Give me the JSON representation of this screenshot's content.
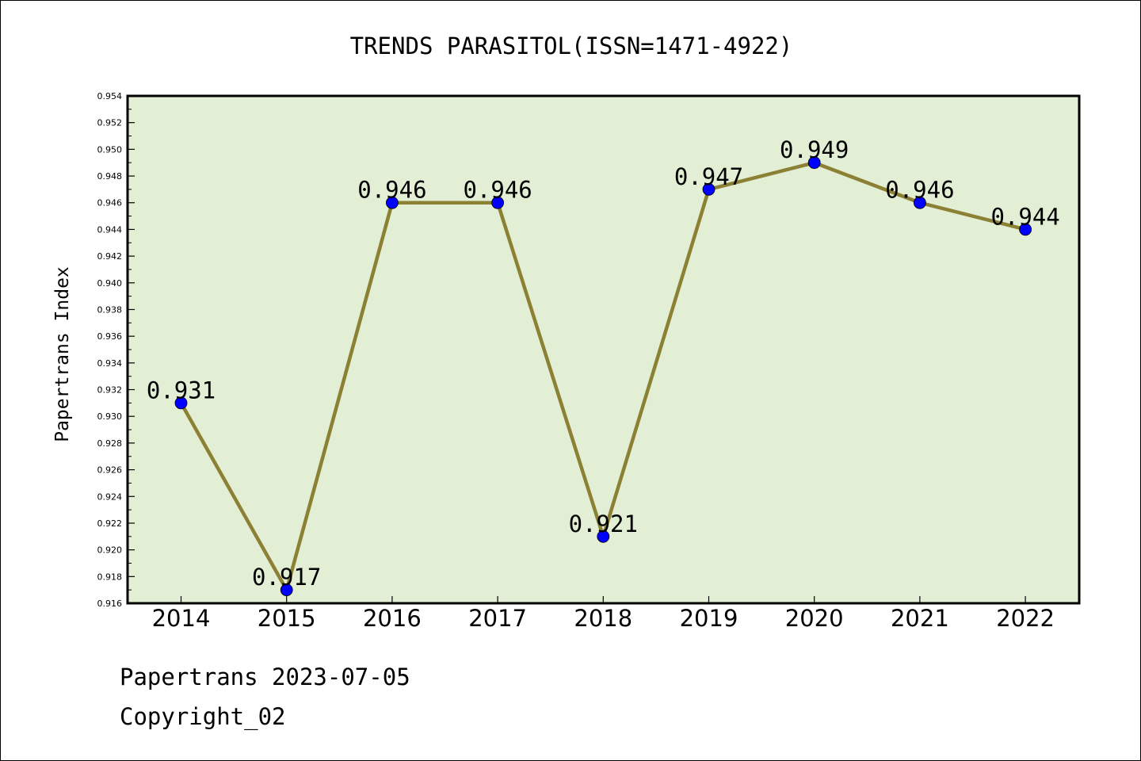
{
  "chart_data": {
    "type": "line",
    "title": "TRENDS PARASITOL(ISSN=1471-4922)",
    "xlabel": "",
    "ylabel": "Papertrans Index",
    "categories": [
      "2014",
      "2015",
      "2016",
      "2017",
      "2018",
      "2019",
      "2020",
      "2021",
      "2022"
    ],
    "series": [
      {
        "values": [
          0.931,
          0.917,
          0.946,
          0.946,
          0.921,
          0.947,
          0.949,
          0.946,
          0.944
        ],
        "data_labels": [
          "0.931",
          "0.917",
          "0.946",
          "0.946",
          "0.921",
          "0.947",
          "0.949",
          "0.946",
          "0.944"
        ]
      }
    ],
    "ylim": [
      0.916,
      0.954
    ],
    "yticks": [
      "0.916",
      "0.918",
      "0.920",
      "0.922",
      "0.924",
      "0.926",
      "0.928",
      "0.930",
      "0.932",
      "0.934",
      "0.936",
      "0.938",
      "0.940",
      "0.942",
      "0.944",
      "0.946",
      "0.948",
      "0.950",
      "0.952",
      "0.954"
    ],
    "grid": false,
    "legend": "none",
    "colors": {
      "plot_background": "#e2efd5",
      "line": "#8c8035",
      "marker": "#0000ff"
    }
  },
  "footer": {
    "line1": "Papertrans 2023-07-05",
    "line2": "Copyright_02"
  }
}
